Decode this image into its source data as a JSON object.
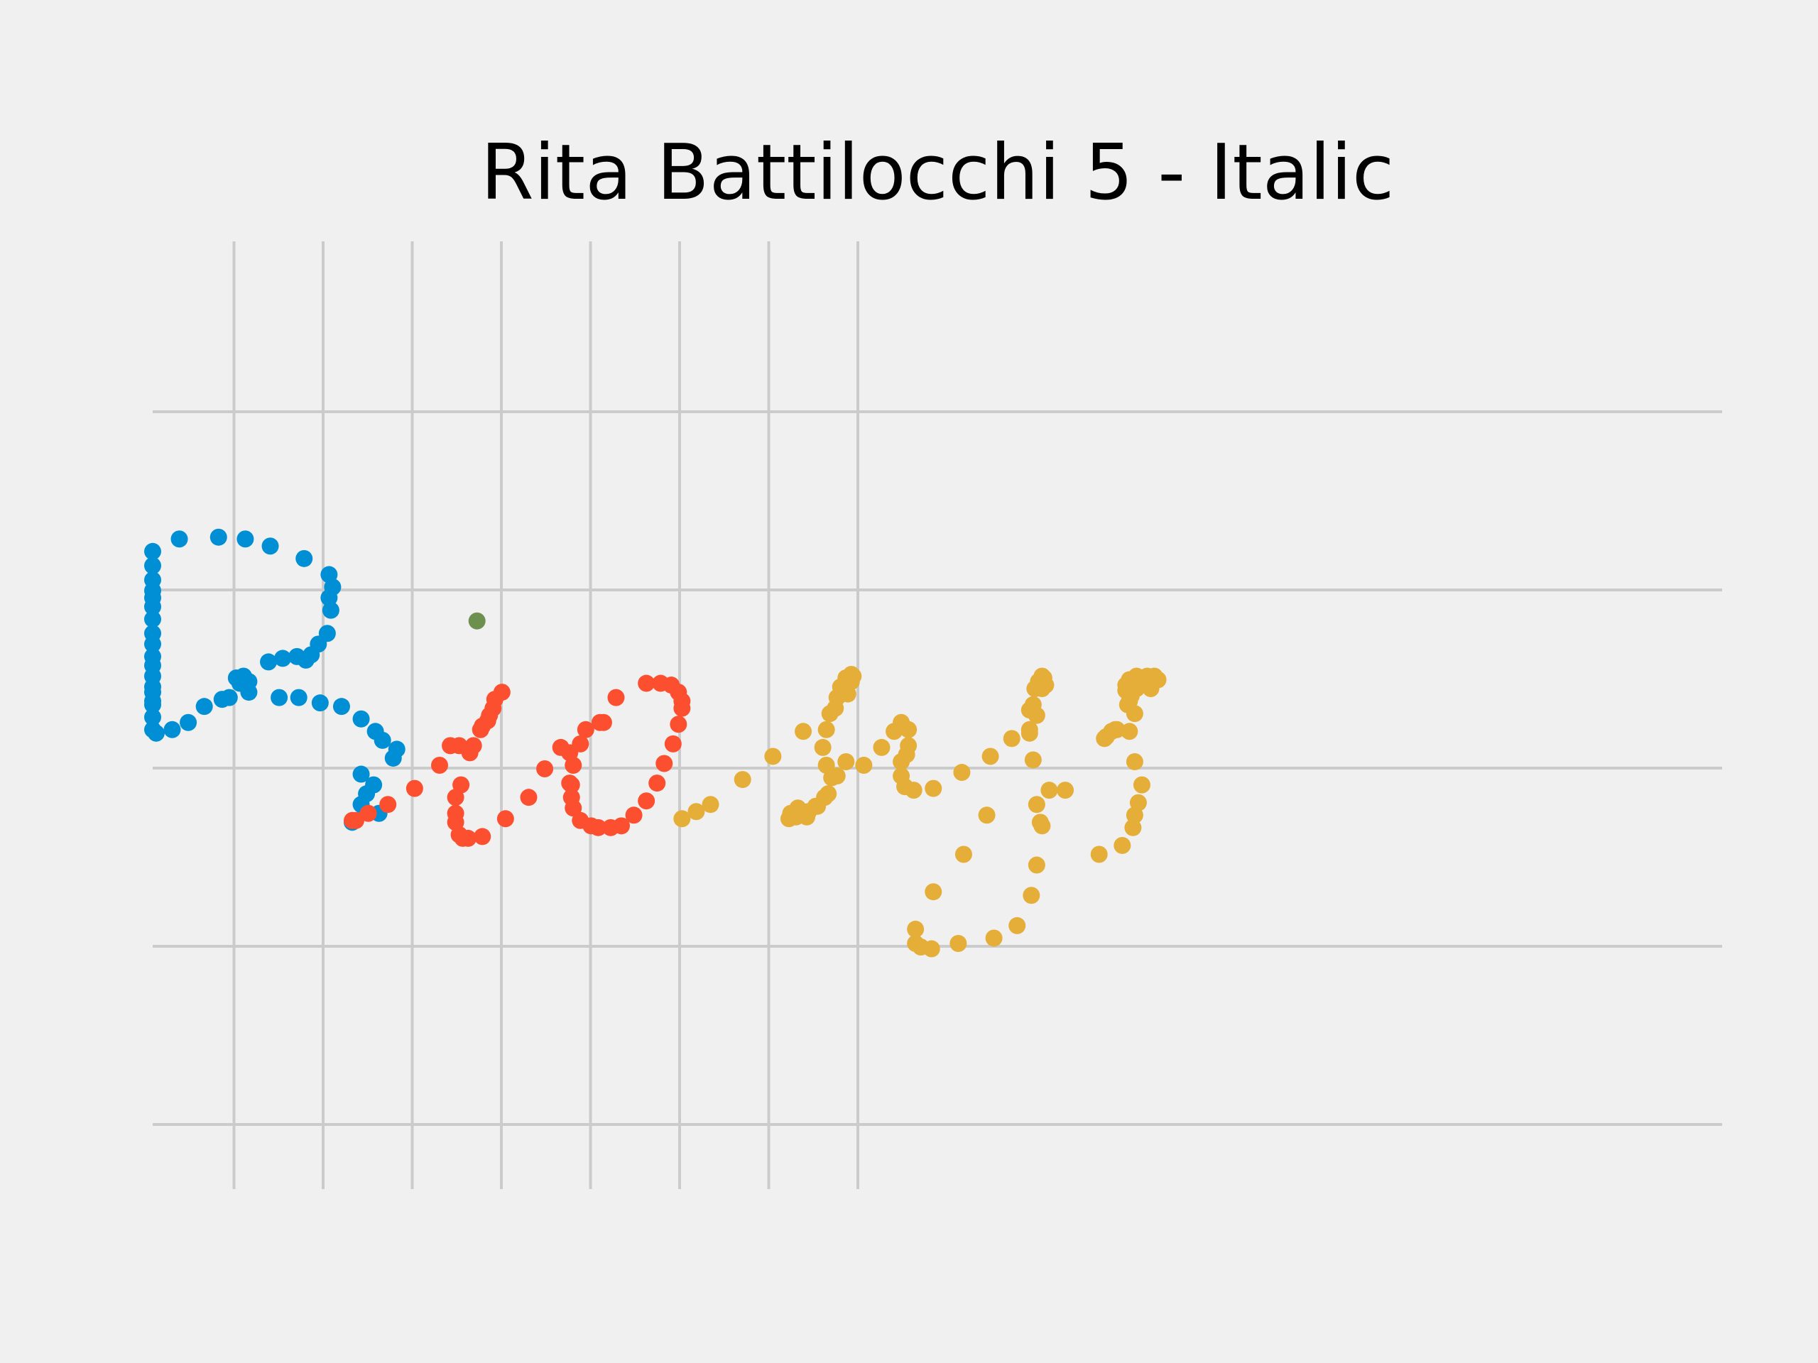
{
  "chart_data": {
    "type": "scatter",
    "title": "Rita Battilocchi 5 - Italic",
    "xlabel": "",
    "ylabel": "",
    "grid": true,
    "colors": {
      "background": "#f0f0f0",
      "grid": "#cbcbcb",
      "series_1": "#008fd5",
      "series_2": "#fc4f30",
      "series_3": "#e5ae38",
      "series_4": "#6d904f"
    },
    "series": [
      {
        "color": "#008fd5",
        "points": [
          [
            0.0,
            -0.32
          ],
          [
            0.15,
            -0.27
          ],
          [
            0.05,
            -0.22
          ],
          [
            0.08,
            -0.16
          ],
          [
            0.12,
            -0.11
          ],
          [
            0.05,
            -0.05
          ],
          [
            0.23,
            0.04
          ],
          [
            0.25,
            0.09
          ],
          [
            0.17,
            0.14
          ],
          [
            0.13,
            0.19
          ],
          [
            0.05,
            0.26
          ],
          [
            -0.06,
            0.33
          ],
          [
            -0.18,
            0.35
          ],
          [
            -0.3,
            0.38
          ],
          [
            -0.41,
            0.38
          ],
          [
            -0.58,
            0.41
          ],
          [
            -0.69,
            0.38
          ],
          [
            -0.73,
            0.37
          ],
          [
            -0.83,
            0.33
          ],
          [
            -0.92,
            0.24
          ],
          [
            -1.01,
            0.2
          ],
          [
            -1.1,
            0.18
          ],
          [
            -1.27,
            0.2
          ],
          [
            -1.26,
            0.27
          ],
          [
            -1.21,
            0.34
          ],
          [
            -1.26,
            0.36
          ],
          [
            -1.26,
            0.41
          ],
          [
            -1.27,
            0.44
          ],
          [
            -1.29,
            0.5
          ],
          [
            -1.3,
            0.56
          ],
          [
            -1.32,
            0.61
          ],
          [
            -1.36,
            0.68
          ],
          [
            -1.42,
            0.74
          ],
          [
            -1.45,
            0.82
          ],
          [
            -1.47,
            0.89
          ],
          [
            -1.48,
            0.94
          ],
          [
            -1.48,
            0.98
          ],
          [
            -1.46,
            1.04
          ],
          [
            -1.4,
            1.12
          ],
          [
            -1.19,
            1.2
          ],
          [
            -0.97,
            1.27
          ],
          [
            -0.75,
            1.28
          ],
          [
            -0.6,
            1.27
          ],
          [
            -0.46,
            1.23
          ],
          [
            -0.27,
            1.16
          ],
          [
            -0.13,
            1.07
          ],
          [
            -0.11,
            1.0
          ],
          [
            -0.13,
            0.94
          ],
          [
            -0.12,
            0.87
          ],
          [
            -0.14,
            0.74
          ],
          [
            -0.19,
            0.68
          ],
          [
            -0.23,
            0.62
          ],
          [
            -0.26,
            0.59
          ],
          [
            -0.31,
            0.61
          ],
          [
            -0.39,
            0.6
          ],
          [
            -0.47,
            0.58
          ],
          [
            -0.61,
            0.5
          ],
          [
            -0.63,
            0.46
          ],
          [
            -0.58,
            0.47
          ],
          [
            -0.65,
            0.49
          ]
        ]
      },
      {
        "color": "#fc4f30",
        "points": [
          [
            0.0,
            -0.31
          ],
          [
            0.02,
            -0.31
          ],
          [
            0.09,
            -0.27
          ],
          [
            0.2,
            -0.22
          ],
          [
            0.35,
            -0.13
          ],
          [
            0.49,
            0.0
          ],
          [
            0.61,
            -0.11
          ],
          [
            0.58,
            -0.18
          ],
          [
            0.58,
            -0.27
          ],
          [
            0.58,
            -0.32
          ],
          [
            0.6,
            -0.39
          ],
          [
            0.62,
            -0.41
          ],
          [
            0.65,
            -0.41
          ],
          [
            0.73,
            -0.4
          ],
          [
            0.86,
            -0.3
          ],
          [
            0.99,
            -0.18
          ],
          [
            1.08,
            -0.02
          ],
          [
            1.17,
            0.1
          ],
          [
            1.22,
            0.07
          ],
          [
            1.23,
            -0.11
          ],
          [
            1.23,
            -0.18
          ],
          [
            1.24,
            -0.24
          ],
          [
            1.28,
            -0.31
          ],
          [
            1.34,
            -0.34
          ],
          [
            1.38,
            -0.35
          ],
          [
            1.45,
            -0.35
          ],
          [
            1.51,
            -0.34
          ],
          [
            1.58,
            -0.28
          ],
          [
            1.65,
            -0.2
          ],
          [
            1.71,
            -0.1
          ],
          [
            1.75,
            0.01
          ],
          [
            1.8,
            0.12
          ],
          [
            1.83,
            0.23
          ],
          [
            1.85,
            0.32
          ],
          [
            1.85,
            0.36
          ],
          [
            1.83,
            0.41
          ],
          [
            1.79,
            0.45
          ],
          [
            1.73,
            0.46
          ],
          [
            1.65,
            0.46
          ],
          [
            1.48,
            0.38
          ],
          [
            1.41,
            0.24
          ],
          [
            1.39,
            0.24
          ],
          [
            1.31,
            0.2
          ],
          [
            1.28,
            0.12
          ],
          [
            1.24,
            0.0
          ],
          [
            1.22,
            -0.1
          ],
          [
            0.84,
            0.41
          ],
          [
            0.8,
            0.37
          ],
          [
            0.79,
            0.32
          ],
          [
            0.77,
            0.28
          ],
          [
            0.76,
            0.25
          ],
          [
            0.73,
            0.22
          ],
          [
            0.72,
            0.2
          ],
          [
            0.68,
            0.11
          ],
          [
            0.66,
            0.07
          ],
          [
            0.6,
            0.11
          ],
          [
            0.55,
            0.11
          ]
        ]
      },
      {
        "color": "#e5ae38",
        "points": [
          [
            1.85,
            -0.3
          ],
          [
            1.93,
            -0.26
          ],
          [
            2.01,
            -0.22
          ],
          [
            2.19,
            -0.08
          ],
          [
            2.36,
            0.05
          ],
          [
            2.53,
            0.19
          ],
          [
            2.71,
            0.32
          ],
          [
            2.78,
            0.4
          ],
          [
            2.8,
            0.47
          ],
          [
            2.81,
            0.5
          ],
          [
            2.8,
            0.51
          ],
          [
            2.77,
            0.49
          ],
          [
            2.74,
            0.44
          ],
          [
            2.72,
            0.38
          ],
          [
            2.68,
            0.29
          ],
          [
            2.66,
            0.2
          ],
          [
            2.64,
            0.1
          ],
          [
            2.66,
            0.0
          ],
          [
            2.69,
            -0.07
          ],
          [
            2.65,
            -0.18
          ],
          [
            2.6,
            -0.23
          ],
          [
            2.56,
            -0.26
          ],
          [
            2.52,
            -0.26
          ],
          [
            2.5,
            -0.24
          ],
          [
            2.46,
            -0.27
          ],
          [
            2.45,
            -0.3
          ],
          [
            2.49,
            -0.29
          ],
          [
            2.55,
            -0.29
          ],
          [
            2.61,
            -0.23
          ],
          [
            2.67,
            -0.16
          ],
          [
            2.72,
            -0.06
          ],
          [
            2.77,
            0.02
          ],
          [
            2.87,
            0.0
          ],
          [
            2.97,
            0.1
          ],
          [
            3.04,
            0.19
          ],
          [
            3.08,
            0.24
          ],
          [
            3.12,
            0.2
          ],
          [
            3.12,
            0.11
          ],
          [
            3.11,
            0.06
          ],
          [
            3.08,
            0.02
          ],
          [
            3.08,
            -0.06
          ],
          [
            3.1,
            -0.12
          ],
          [
            3.15,
            -0.14
          ],
          [
            3.26,
            -0.13
          ],
          [
            3.42,
            -0.04
          ],
          [
            3.58,
            0.05
          ],
          [
            3.7,
            0.15
          ],
          [
            3.8,
            0.2
          ],
          [
            3.84,
            0.28
          ],
          [
            3.87,
            0.43
          ],
          [
            3.89,
            0.45
          ],
          [
            3.88,
            0.49
          ],
          [
            3.87,
            0.5
          ],
          [
            3.85,
            0.47
          ],
          [
            3.83,
            0.43
          ],
          [
            3.82,
            0.34
          ],
          [
            3.8,
            0.31
          ],
          [
            3.8,
            0.18
          ],
          [
            3.82,
            0.03
          ],
          [
            3.84,
            -0.22
          ],
          [
            3.86,
            -0.32
          ],
          [
            3.87,
            -0.34
          ],
          [
            3.84,
            -0.56
          ],
          [
            3.81,
            -0.73
          ],
          [
            3.73,
            -0.9
          ],
          [
            3.6,
            -0.97
          ],
          [
            3.4,
            -1.0
          ],
          [
            3.25,
            -1.03
          ],
          [
            3.19,
            -1.02
          ],
          [
            3.16,
            -1.0
          ],
          [
            3.16,
            -0.92
          ],
          [
            3.26,
            -0.71
          ],
          [
            3.43,
            -0.5
          ],
          [
            3.56,
            -0.28
          ],
          [
            3.91,
            -0.14
          ],
          [
            4.0,
            -0.14
          ],
          [
            4.19,
            -0.5
          ],
          [
            4.32,
            -0.45
          ],
          [
            4.38,
            -0.35
          ],
          [
            4.39,
            -0.28
          ],
          [
            4.41,
            -0.21
          ],
          [
            4.43,
            -0.11
          ],
          [
            4.39,
            0.02
          ],
          [
            4.36,
            0.19
          ],
          [
            4.39,
            0.29
          ],
          [
            4.36,
            0.36
          ],
          [
            4.34,
            0.42
          ],
          [
            4.34,
            0.45
          ],
          [
            4.36,
            0.48
          ],
          [
            4.4,
            0.5
          ],
          [
            4.46,
            0.5
          ],
          [
            4.5,
            0.5
          ],
          [
            4.52,
            0.48
          ],
          [
            4.48,
            0.43
          ],
          [
            4.46,
            0.47
          ],
          [
            4.44,
            0.47
          ],
          [
            4.4,
            0.43
          ],
          [
            4.37,
            0.39
          ],
          [
            4.35,
            0.34
          ],
          [
            4.29,
            0.2
          ],
          [
            4.23,
            0.16
          ],
          [
            4.22,
            0.15
          ],
          [
            4.26,
            0.19
          ],
          [
            4.28,
            0.2
          ]
        ]
      },
      {
        "color": "#6d904f",
        "points": [
          [
            0.7,
            0.81
          ]
        ]
      }
    ]
  }
}
